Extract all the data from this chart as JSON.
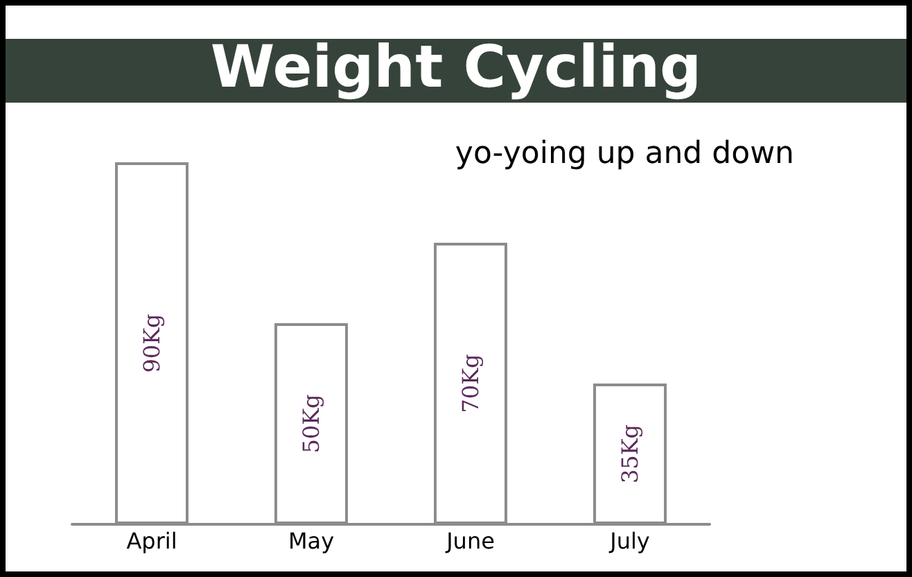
{
  "chart_data": {
    "type": "bar",
    "title": "Weight Cycling",
    "annotations": [
      "yo-yoing up and down"
    ],
    "categories": [
      "April",
      "May",
      "June",
      "July"
    ],
    "values": [
      90,
      50,
      70,
      35
    ],
    "value_labels": [
      "90Kg",
      "50Kg",
      "70Kg",
      "35Kg"
    ],
    "color": "#ffffff"
  }
}
